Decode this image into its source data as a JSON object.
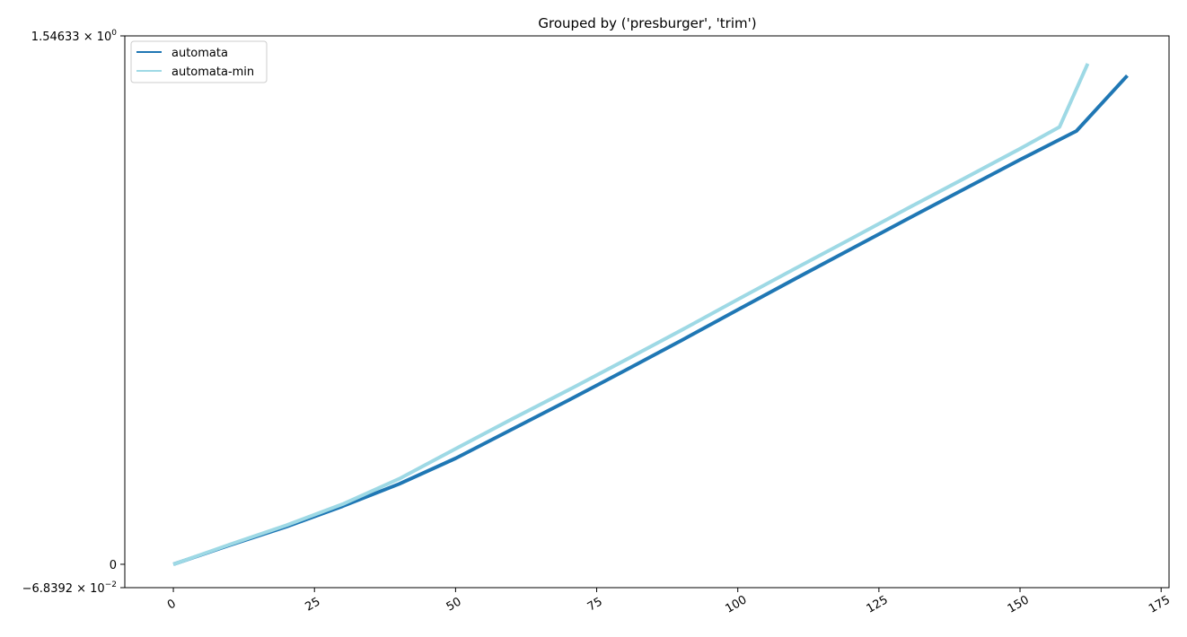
{
  "chart_data": {
    "type": "line",
    "title": "Grouped by ('presburger', 'trim')",
    "xlabel": "",
    "ylabel": "",
    "xlim": [
      -8.6,
      176.4
    ],
    "ylim": [
      -0.068392,
      1.54633
    ],
    "x_ticks": [
      0,
      25,
      50,
      75,
      100,
      125,
      150,
      175
    ],
    "x_tick_labels": [
      "0",
      "25",
      "50",
      "75",
      "100",
      "125",
      "150",
      "175"
    ],
    "y_ticks": [
      {
        "value": 1.54633,
        "mantissa": "1.54633",
        "exponent": "0"
      },
      {
        "value": 0,
        "mantissa": "0",
        "exponent": ""
      },
      {
        "value": -0.068392,
        "mantissa": "−6.8392",
        "exponent": "−2"
      }
    ],
    "grid": false,
    "legend_position": "top-left",
    "series": [
      {
        "name": "automata",
        "color": "#1f77b4",
        "points": [
          [
            0,
            0.0
          ],
          [
            10,
            0.056
          ],
          [
            20,
            0.11
          ],
          [
            30,
            0.17
          ],
          [
            40,
            0.235
          ],
          [
            50,
            0.31
          ],
          [
            60,
            0.395
          ],
          [
            70,
            0.48
          ],
          [
            80,
            0.567
          ],
          [
            90,
            0.655
          ],
          [
            100,
            0.745
          ],
          [
            110,
            0.834
          ],
          [
            120,
            0.922
          ],
          [
            130,
            1.01
          ],
          [
            140,
            1.097
          ],
          [
            150,
            1.184
          ],
          [
            160,
            1.268
          ],
          [
            169,
            1.43
          ]
        ]
      },
      {
        "name": "automata-min",
        "color": "#9ed9e5",
        "points": [
          [
            0,
            0.0
          ],
          [
            10,
            0.058
          ],
          [
            20,
            0.114
          ],
          [
            30,
            0.176
          ],
          [
            40,
            0.25
          ],
          [
            50,
            0.338
          ],
          [
            60,
            0.425
          ],
          [
            70,
            0.51
          ],
          [
            80,
            0.597
          ],
          [
            90,
            0.685
          ],
          [
            100,
            0.775
          ],
          [
            110,
            0.864
          ],
          [
            120,
            0.952
          ],
          [
            130,
            1.041
          ],
          [
            140,
            1.128
          ],
          [
            150,
            1.216
          ],
          [
            157,
            1.28
          ],
          [
            162,
            1.465
          ]
        ]
      }
    ]
  }
}
